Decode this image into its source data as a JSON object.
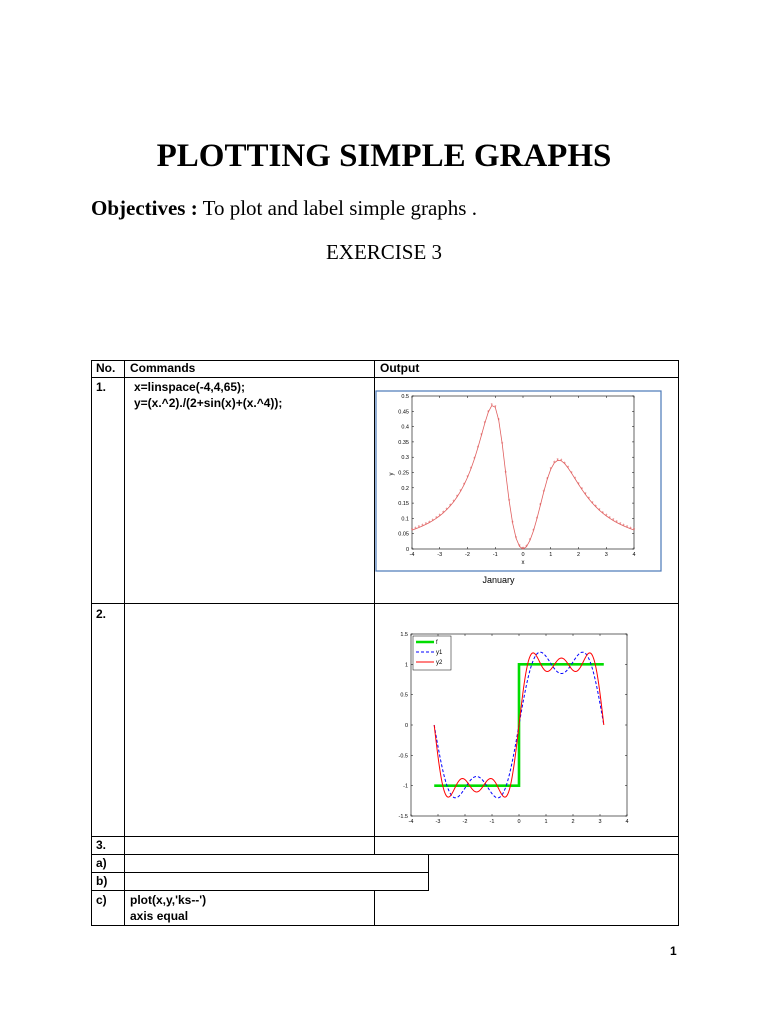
{
  "title": "PLOTTING SIMPLE GRAPHS",
  "objectives": {
    "label": "Objectives :",
    "text": " To plot and label simple graphs ."
  },
  "exercise": "EXERCISE 3",
  "table": {
    "headers": {
      "no": "No.",
      "commands": "Commands",
      "output": "Output"
    },
    "rows": [
      {
        "no": "1.",
        "commands": [
          "x=linspace(-4,4,65);",
          "y=(x.^2)./(2+sin(x)+(x.^4));"
        ]
      },
      {
        "no": "2."
      },
      {
        "no": "3."
      },
      {
        "no": "a)"
      },
      {
        "no": "b)"
      },
      {
        "no": "c)",
        "commands": [
          "plot(x,y,'ks--')",
          "axis equal"
        ]
      }
    ]
  },
  "page_number": "1",
  "colors": {
    "plot1_line": "#e06060",
    "step": "#00dd00",
    "y1": "#0000ff",
    "y2": "#ff0000"
  },
  "chart_data": [
    {
      "type": "line",
      "title": "",
      "xlabel": "x",
      "ylabel": "y",
      "caption": "January",
      "xlim": [
        -4,
        4
      ],
      "ylim": [
        0,
        0.5
      ],
      "xticks": [
        "-4",
        "-3",
        "-2",
        "-1",
        "0",
        "1",
        "2",
        "3",
        "4"
      ],
      "yticks": [
        "0",
        "0.05",
        "0.1",
        "0.15",
        "0.2",
        "0.25",
        "0.3",
        "0.35",
        "0.4",
        "0.45",
        "0.5"
      ],
      "series": [
        {
          "marker": "*",
          "function": "(x.^2)./(2+sin(x)+(x.^4))",
          "x_range": [
            -4,
            4
          ],
          "points": 65
        }
      ]
    },
    {
      "type": "line",
      "title": "",
      "xlim": [
        -4,
        4
      ],
      "ylim": [
        -1.5,
        1.5
      ],
      "xticks": [
        "-4",
        "-3",
        "-2",
        "-1",
        "0",
        "1",
        "2",
        "3",
        "4"
      ],
      "yticks": [
        "-1.5",
        "-1",
        "-0.5",
        "0",
        "0.5",
        "1",
        "1.5"
      ],
      "legend_position": "top-left",
      "series": [
        {
          "name": "f",
          "style": "solid-thick",
          "x": [
            -3.14,
            0,
            0,
            3.14
          ],
          "y": [
            -1,
            -1,
            1,
            1
          ]
        },
        {
          "name": "y1",
          "style": "dashed",
          "terms": 2
        },
        {
          "name": "y2",
          "style": "solid",
          "terms": 3
        }
      ]
    }
  ]
}
